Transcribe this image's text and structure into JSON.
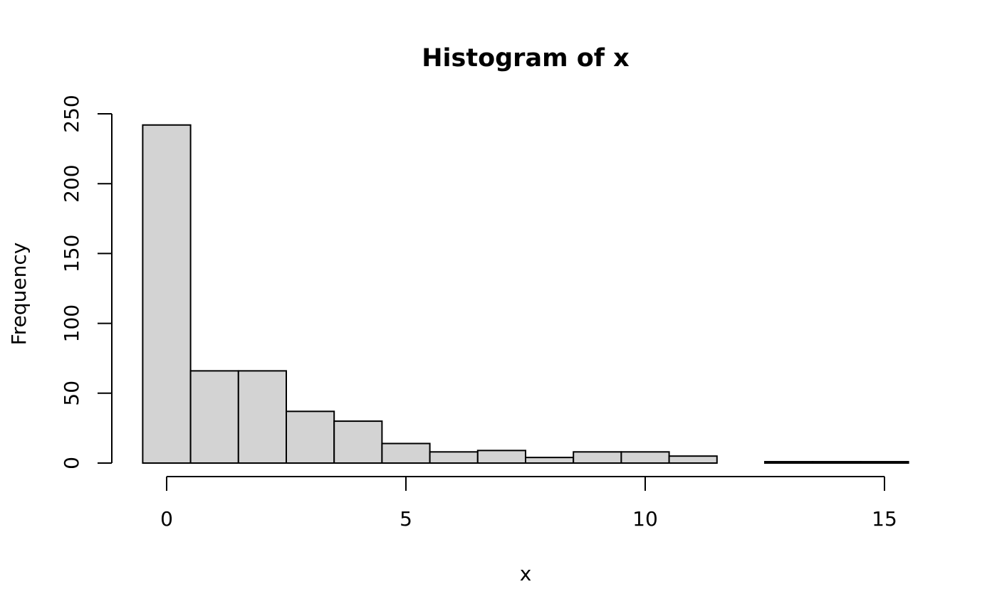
{
  "chart_data": {
    "type": "bar",
    "title": "Histogram of x",
    "xlabel": "x",
    "ylabel": "Frequency",
    "bin_edges": [
      -0.5,
      0.5,
      1.5,
      2.5,
      3.5,
      4.5,
      5.5,
      6.5,
      7.5,
      8.5,
      9.5,
      10.5,
      11.5,
      12.5,
      13.5,
      14.5,
      15.5
    ],
    "values": [
      242,
      66,
      66,
      37,
      30,
      14,
      8,
      9,
      4,
      8,
      8,
      5,
      0,
      1,
      1,
      1
    ],
    "xlim": [
      -0.5,
      15.5
    ],
    "ylim": [
      0,
      250
    ],
    "xticks": [
      0,
      5,
      10,
      15
    ],
    "xtick_labels": [
      "0",
      "5",
      "10",
      "15"
    ],
    "yticks": [
      0,
      50,
      100,
      150,
      200,
      250
    ],
    "ytick_labels": [
      "0",
      "50",
      "100",
      "150",
      "200",
      "250"
    ],
    "bar_fill": "#d3d3d3",
    "bar_stroke": "#000000",
    "grid": false
  }
}
